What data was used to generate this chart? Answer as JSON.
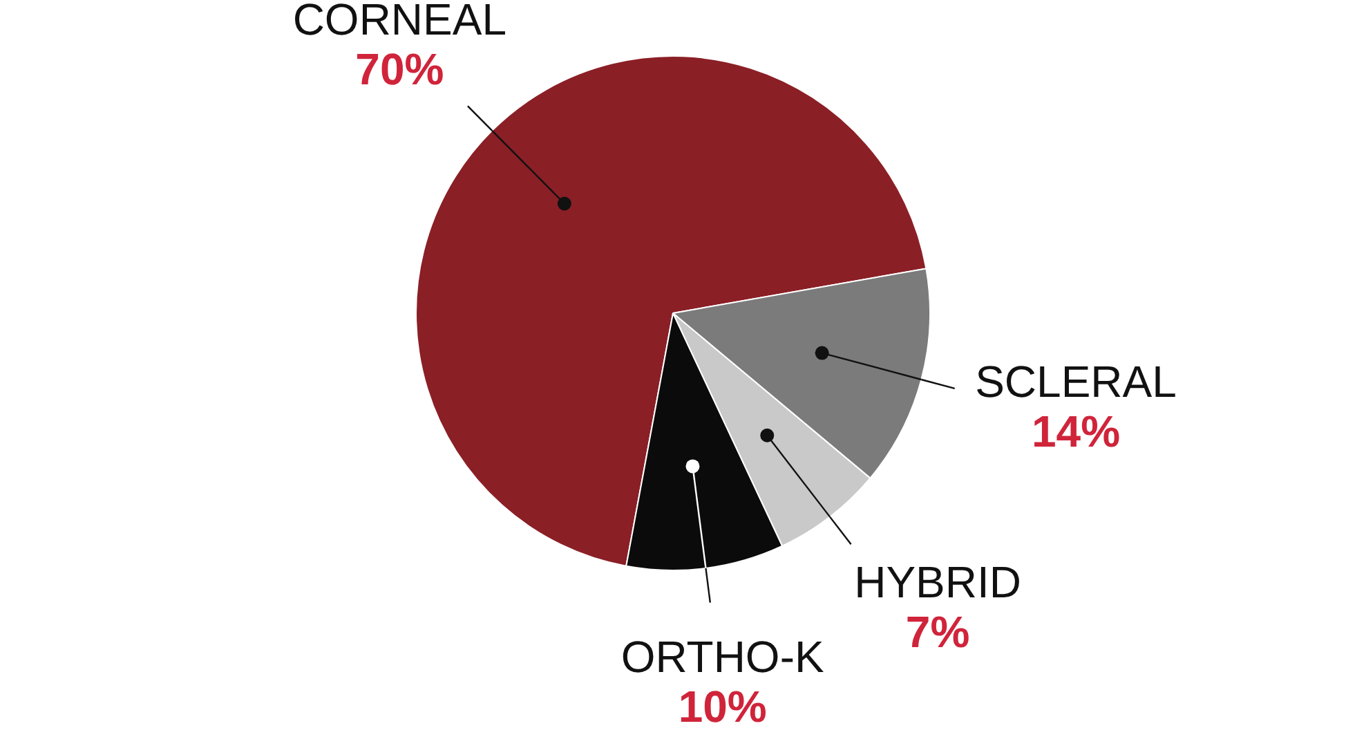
{
  "chart_data": {
    "type": "pie",
    "categories": [
      "CORNEAL",
      "SCLERAL",
      "HYBRID",
      "ORTHO-K"
    ],
    "values": [
      70,
      14,
      7,
      10
    ],
    "colors": [
      "#8b1f26",
      "#7b7b7b",
      "#c9c9c9",
      "#0b0b0b"
    ],
    "value_labels": [
      "70%",
      "14%",
      "7%",
      "10%"
    ],
    "legend": false
  }
}
